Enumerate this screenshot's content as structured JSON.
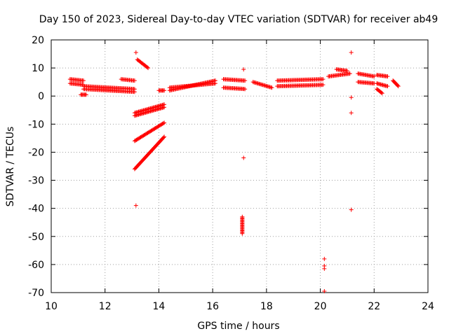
{
  "chart_data": {
    "type": "scatter",
    "title": "Day 150 of 2023, Sidereal Day-to-day VTEC variation (SDTVAR) for receiver ab49",
    "xlabel": "GPS time / hours",
    "ylabel": "SDTVAR / TECUs",
    "xlim": [
      10,
      24
    ],
    "ylim": [
      -70,
      20
    ],
    "xticks": [
      10,
      12,
      14,
      16,
      18,
      20,
      22,
      24
    ],
    "yticks": [
      20,
      10,
      0,
      -10,
      -20,
      -30,
      -40,
      -50,
      -60,
      -70
    ],
    "grid": true,
    "marker": "+",
    "color": "#ff0000",
    "segments": [
      {
        "x0": 10.7,
        "y0": 6.0,
        "x1": 11.2,
        "y1": 5.5
      },
      {
        "x0": 10.7,
        "y0": 4.5,
        "x1": 11.2,
        "y1": 4.0
      },
      {
        "x0": 11.1,
        "y0": 0.5,
        "x1": 11.3,
        "y1": 0.5
      },
      {
        "x0": 11.2,
        "y0": 3.5,
        "x1": 13.1,
        "y1": 2.5
      },
      {
        "x0": 11.2,
        "y0": 2.5,
        "x1": 13.1,
        "y1": 1.5
      },
      {
        "x0": 12.6,
        "y0": 6.0,
        "x1": 13.1,
        "y1": 5.5
      },
      {
        "x0": 13.2,
        "y0": 13.0,
        "x1": 13.6,
        "y1": 10.0
      },
      {
        "x0": 13.1,
        "y0": -6.0,
        "x1": 14.2,
        "y1": -3.0
      },
      {
        "x0": 13.1,
        "y0": -7.0,
        "x1": 14.2,
        "y1": -4.0
      },
      {
        "x0": 13.1,
        "y0": -16.0,
        "x1": 14.2,
        "y1": -9.5
      },
      {
        "x0": 13.1,
        "y0": -26.0,
        "x1": 14.2,
        "y1": -14.5
      },
      {
        "x0": 14.0,
        "y0": 2.0,
        "x1": 14.2,
        "y1": 2.0
      },
      {
        "x0": 14.4,
        "y0": 2.0,
        "x1": 16.1,
        "y1": 5.5
      },
      {
        "x0": 14.4,
        "y0": 3.0,
        "x1": 16.1,
        "y1": 4.5
      },
      {
        "x0": 16.4,
        "y0": 6.0,
        "x1": 17.2,
        "y1": 5.5
      },
      {
        "x0": 16.4,
        "y0": 3.0,
        "x1": 17.2,
        "y1": 2.5
      },
      {
        "x0": 17.1,
        "y0": -43.0,
        "x1": 17.1,
        "y1": -49.0
      },
      {
        "x0": 17.5,
        "y0": 5.0,
        "x1": 18.2,
        "y1": 3.0
      },
      {
        "x0": 18.4,
        "y0": 5.5,
        "x1": 20.1,
        "y1": 6.0
      },
      {
        "x0": 18.4,
        "y0": 3.5,
        "x1": 20.1,
        "y1": 4.0
      },
      {
        "x0": 20.3,
        "y0": 7.0,
        "x1": 21.1,
        "y1": 8.0
      },
      {
        "x0": 20.6,
        "y0": 9.5,
        "x1": 21.0,
        "y1": 9.0
      },
      {
        "x0": 21.4,
        "y0": 8.0,
        "x1": 22.0,
        "y1": 7.0
      },
      {
        "x0": 21.4,
        "y0": 5.0,
        "x1": 22.0,
        "y1": 4.5
      },
      {
        "x0": 22.1,
        "y0": 7.5,
        "x1": 22.5,
        "y1": 7.0
      },
      {
        "x0": 22.1,
        "y0": 4.5,
        "x1": 22.5,
        "y1": 3.5
      },
      {
        "x0": 22.1,
        "y0": 2.5,
        "x1": 22.3,
        "y1": 1.0
      },
      {
        "x0": 22.7,
        "y0": 5.5,
        "x1": 22.9,
        "y1": 3.5
      }
    ],
    "points": [
      [
        13.15,
        15.5
      ],
      [
        13.15,
        -39.0
      ],
      [
        17.15,
        9.5
      ],
      [
        17.15,
        -22.0
      ],
      [
        20.15,
        -58.0
      ],
      [
        20.15,
        -60.5
      ],
      [
        20.15,
        -61.5
      ],
      [
        20.15,
        -69.5
      ],
      [
        21.15,
        15.5
      ],
      [
        21.15,
        -0.5
      ],
      [
        21.15,
        -6.0
      ],
      [
        21.15,
        -40.5
      ]
    ]
  }
}
